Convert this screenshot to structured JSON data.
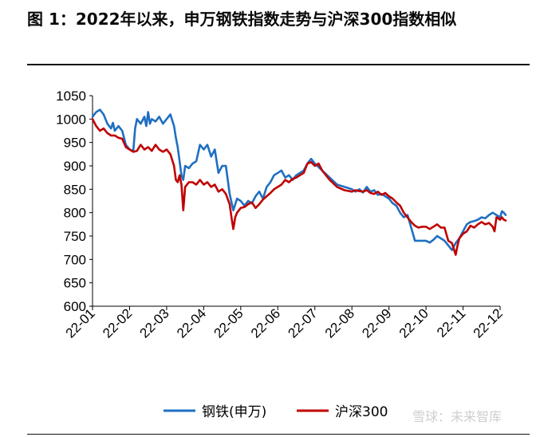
{
  "title": "图  1：2022年以来，申万钢铁指数走势与沪深300指数相似",
  "watermark": "雪球：未来智库",
  "colors": {
    "steel": "#1f6fc1",
    "hs300": "#c00000",
    "axis": "#000000"
  },
  "chart_data": {
    "type": "line",
    "ylim": [
      600,
      1050
    ],
    "yticks": [
      600,
      650,
      700,
      750,
      800,
      850,
      900,
      950,
      1000,
      1050
    ],
    "xticks": [
      "22-01",
      "22-02",
      "22-03",
      "22-04",
      "22-05",
      "22-06",
      "22-07",
      "22-08",
      "22-09",
      "22-10",
      "22-11",
      "22-12"
    ],
    "legend_position": "bottom",
    "series": [
      {
        "name": "钢铁(申万)",
        "color": "#1f6fc1",
        "points": [
          [
            0.0,
            1005
          ],
          [
            0.1,
            1015
          ],
          [
            0.2,
            1020
          ],
          [
            0.3,
            1010
          ],
          [
            0.4,
            990
          ],
          [
            0.5,
            980
          ],
          [
            0.55,
            992
          ],
          [
            0.6,
            975
          ],
          [
            0.7,
            985
          ],
          [
            0.8,
            975
          ],
          [
            0.9,
            945
          ],
          [
            1.0,
            935
          ],
          [
            1.1,
            932
          ],
          [
            1.15,
            980
          ],
          [
            1.2,
            1000
          ],
          [
            1.3,
            990
          ],
          [
            1.4,
            1005
          ],
          [
            1.45,
            985
          ],
          [
            1.5,
            1015
          ],
          [
            1.55,
            990
          ],
          [
            1.6,
            1000
          ],
          [
            1.7,
            995
          ],
          [
            1.8,
            1005
          ],
          [
            1.9,
            990
          ],
          [
            2.0,
            1000
          ],
          [
            2.1,
            1010
          ],
          [
            2.2,
            985
          ],
          [
            2.25,
            960
          ],
          [
            2.3,
            940
          ],
          [
            2.4,
            880
          ],
          [
            2.45,
            870
          ],
          [
            2.5,
            900
          ],
          [
            2.6,
            895
          ],
          [
            2.7,
            905
          ],
          [
            2.8,
            910
          ],
          [
            2.9,
            945
          ],
          [
            3.0,
            935
          ],
          [
            3.1,
            945
          ],
          [
            3.2,
            920
          ],
          [
            3.3,
            935
          ],
          [
            3.4,
            885
          ],
          [
            3.5,
            900
          ],
          [
            3.6,
            900
          ],
          [
            3.7,
            840
          ],
          [
            3.8,
            805
          ],
          [
            3.9,
            830
          ],
          [
            4.0,
            825
          ],
          [
            4.1,
            815
          ],
          [
            4.2,
            825
          ],
          [
            4.3,
            820
          ],
          [
            4.4,
            835
          ],
          [
            4.5,
            845
          ],
          [
            4.6,
            830
          ],
          [
            4.7,
            855
          ],
          [
            4.8,
            865
          ],
          [
            4.9,
            880
          ],
          [
            5.0,
            885
          ],
          [
            5.1,
            890
          ],
          [
            5.2,
            875
          ],
          [
            5.3,
            880
          ],
          [
            5.4,
            870
          ],
          [
            5.5,
            880
          ],
          [
            5.6,
            885
          ],
          [
            5.7,
            890
          ],
          [
            5.8,
            905
          ],
          [
            5.9,
            915
          ],
          [
            6.0,
            905
          ],
          [
            6.2,
            890
          ],
          [
            6.4,
            875
          ],
          [
            6.6,
            860
          ],
          [
            6.8,
            855
          ],
          [
            7.0,
            850
          ],
          [
            7.1,
            845
          ],
          [
            7.2,
            850
          ],
          [
            7.3,
            843
          ],
          [
            7.4,
            855
          ],
          [
            7.5,
            845
          ],
          [
            7.6,
            848
          ],
          [
            7.7,
            838
          ],
          [
            7.8,
            840
          ],
          [
            7.9,
            835
          ],
          [
            8.0,
            830
          ],
          [
            8.1,
            820
          ],
          [
            8.2,
            815
          ],
          [
            8.3,
            800
          ],
          [
            8.4,
            790
          ],
          [
            8.5,
            795
          ],
          [
            8.6,
            768
          ],
          [
            8.7,
            740
          ],
          [
            8.8,
            740
          ],
          [
            8.9,
            740
          ],
          [
            9.0,
            740
          ],
          [
            9.1,
            736
          ],
          [
            9.2,
            742
          ],
          [
            9.3,
            750
          ],
          [
            9.4,
            745
          ],
          [
            9.5,
            740
          ],
          [
            9.6,
            730
          ],
          [
            9.7,
            720
          ],
          [
            9.8,
            735
          ],
          [
            9.9,
            745
          ],
          [
            10.0,
            760
          ],
          [
            10.1,
            775
          ],
          [
            10.2,
            780
          ],
          [
            10.3,
            782
          ],
          [
            10.4,
            785
          ],
          [
            10.5,
            790
          ],
          [
            10.6,
            788
          ],
          [
            10.7,
            795
          ],
          [
            10.8,
            800
          ],
          [
            10.9,
            795
          ],
          [
            11.0,
            790
          ],
          [
            11.05,
            803
          ],
          [
            11.1,
            800
          ],
          [
            11.15,
            795
          ]
        ]
      },
      {
        "name": "沪深300",
        "color": "#c00000",
        "points": [
          [
            0.0,
            1000
          ],
          [
            0.1,
            985
          ],
          [
            0.2,
            975
          ],
          [
            0.3,
            980
          ],
          [
            0.4,
            970
          ],
          [
            0.5,
            965
          ],
          [
            0.6,
            965
          ],
          [
            0.7,
            960
          ],
          [
            0.8,
            958
          ],
          [
            0.9,
            940
          ],
          [
            1.0,
            935
          ],
          [
            1.1,
            930
          ],
          [
            1.2,
            932
          ],
          [
            1.3,
            945
          ],
          [
            1.4,
            935
          ],
          [
            1.5,
            940
          ],
          [
            1.6,
            932
          ],
          [
            1.7,
            945
          ],
          [
            1.8,
            935
          ],
          [
            1.9,
            930
          ],
          [
            2.0,
            935
          ],
          [
            2.1,
            925
          ],
          [
            2.2,
            900
          ],
          [
            2.25,
            870
          ],
          [
            2.3,
            865
          ],
          [
            2.35,
            880
          ],
          [
            2.4,
            860
          ],
          [
            2.45,
            805
          ],
          [
            2.5,
            855
          ],
          [
            2.6,
            865
          ],
          [
            2.7,
            865
          ],
          [
            2.8,
            860
          ],
          [
            2.9,
            870
          ],
          [
            3.0,
            860
          ],
          [
            3.1,
            865
          ],
          [
            3.2,
            855
          ],
          [
            3.3,
            860
          ],
          [
            3.4,
            845
          ],
          [
            3.5,
            850
          ],
          [
            3.6,
            840
          ],
          [
            3.7,
            818
          ],
          [
            3.75,
            790
          ],
          [
            3.8,
            765
          ],
          [
            3.85,
            790
          ],
          [
            3.9,
            800
          ],
          [
            4.0,
            810
          ],
          [
            4.1,
            812
          ],
          [
            4.2,
            818
          ],
          [
            4.3,
            822
          ],
          [
            4.4,
            810
          ],
          [
            4.5,
            818
          ],
          [
            4.6,
            828
          ],
          [
            4.7,
            835
          ],
          [
            4.8,
            842
          ],
          [
            4.9,
            850
          ],
          [
            5.0,
            855
          ],
          [
            5.1,
            860
          ],
          [
            5.2,
            870
          ],
          [
            5.3,
            865
          ],
          [
            5.4,
            872
          ],
          [
            5.5,
            875
          ],
          [
            5.6,
            880
          ],
          [
            5.7,
            885
          ],
          [
            5.8,
            905
          ],
          [
            5.9,
            908
          ],
          [
            6.0,
            900
          ],
          [
            6.1,
            905
          ],
          [
            6.2,
            890
          ],
          [
            6.4,
            870
          ],
          [
            6.6,
            855
          ],
          [
            6.8,
            848
          ],
          [
            7.0,
            845
          ],
          [
            7.1,
            848
          ],
          [
            7.2,
            846
          ],
          [
            7.3,
            845
          ],
          [
            7.4,
            848
          ],
          [
            7.5,
            842
          ],
          [
            7.6,
            840
          ],
          [
            7.7,
            845
          ],
          [
            7.8,
            838
          ],
          [
            7.9,
            842
          ],
          [
            8.0,
            835
          ],
          [
            8.1,
            830
          ],
          [
            8.2,
            822
          ],
          [
            8.3,
            815
          ],
          [
            8.4,
            800
          ],
          [
            8.5,
            790
          ],
          [
            8.6,
            780
          ],
          [
            8.7,
            772
          ],
          [
            8.8,
            768
          ],
          [
            8.9,
            770
          ],
          [
            9.0,
            770
          ],
          [
            9.1,
            765
          ],
          [
            9.2,
            770
          ],
          [
            9.3,
            775
          ],
          [
            9.4,
            768
          ],
          [
            9.5,
            768
          ],
          [
            9.6,
            740
          ],
          [
            9.7,
            735
          ],
          [
            9.8,
            710
          ],
          [
            9.85,
            730
          ],
          [
            9.9,
            745
          ],
          [
            10.0,
            755
          ],
          [
            10.1,
            760
          ],
          [
            10.2,
            772
          ],
          [
            10.3,
            768
          ],
          [
            10.4,
            775
          ],
          [
            10.5,
            780
          ],
          [
            10.6,
            775
          ],
          [
            10.7,
            778
          ],
          [
            10.8,
            770
          ],
          [
            10.85,
            760
          ],
          [
            10.9,
            790
          ],
          [
            11.0,
            785
          ],
          [
            11.05,
            790
          ],
          [
            11.1,
            785
          ],
          [
            11.15,
            783
          ]
        ]
      }
    ]
  }
}
